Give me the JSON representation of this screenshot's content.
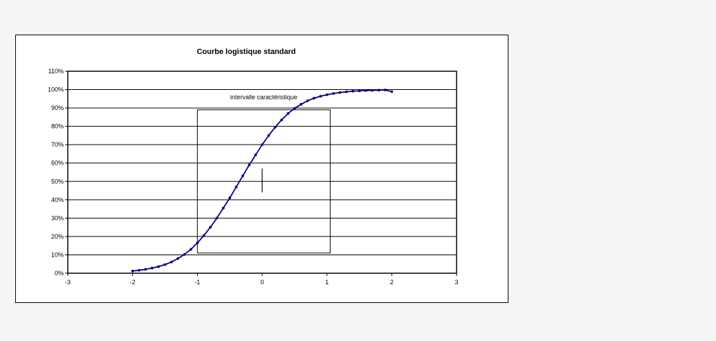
{
  "chart_data": {
    "type": "line",
    "title": "Courbe logistique standard",
    "xlabel": "",
    "ylabel": "",
    "xlim": [
      -3,
      3
    ],
    "ylim": [
      0,
      1.1
    ],
    "x_ticks": [
      -3,
      -2,
      -1,
      0,
      1,
      2,
      3
    ],
    "x_tick_labels": [
      "-3",
      "-2",
      "-1",
      "0",
      "1",
      "2",
      "3"
    ],
    "y_ticks": [
      0,
      0.1,
      0.2,
      0.3,
      0.4,
      0.5,
      0.6,
      0.7,
      0.8,
      0.9,
      1.0,
      1.1
    ],
    "y_tick_labels": [
      "0%",
      "10%",
      "20%",
      "30%",
      "40%",
      "50%",
      "60%",
      "70%",
      "80%",
      "90%",
      "100%",
      "110%"
    ],
    "grid": "horizontal",
    "legend": "none",
    "series": [
      {
        "color": "#000080",
        "x": [
          -2.0,
          -1.9,
          -1.8,
          -1.7,
          -1.6,
          -1.5,
          -1.4,
          -1.3,
          -1.2,
          -1.1,
          -1.0,
          -0.9,
          -0.8,
          -0.7,
          -0.6,
          -0.5,
          -0.4,
          -0.3,
          -0.2,
          -0.1,
          0.0,
          0.1,
          0.2,
          0.3,
          0.4,
          0.5,
          0.6,
          0.7,
          0.8,
          0.9,
          1.0,
          1.1,
          1.2,
          1.3,
          1.4,
          1.5,
          1.6,
          1.7,
          1.8,
          1.9,
          2.0
        ],
        "y": [
          0.012,
          0.016,
          0.021,
          0.028,
          0.036,
          0.047,
          0.061,
          0.08,
          0.102,
          0.13,
          0.165,
          0.205,
          0.25,
          0.3,
          0.355,
          0.41,
          0.47,
          0.53,
          0.59,
          0.645,
          0.7,
          0.75,
          0.795,
          0.835,
          0.87,
          0.898,
          0.92,
          0.939,
          0.953,
          0.964,
          0.972,
          0.979,
          0.984,
          0.988,
          0.991,
          0.993,
          0.995,
          0.996,
          0.997,
          0.998,
          0.989
        ]
      }
    ],
    "annotations": {
      "interval_label": "intervalle caractéristique",
      "interval_box": {
        "x0": -1.0,
        "x1": 1.05,
        "y0": 0.11,
        "y1": 0.89
      },
      "center_marker": {
        "x": 0.0,
        "y0": 0.44,
        "y1": 0.57
      }
    }
  }
}
